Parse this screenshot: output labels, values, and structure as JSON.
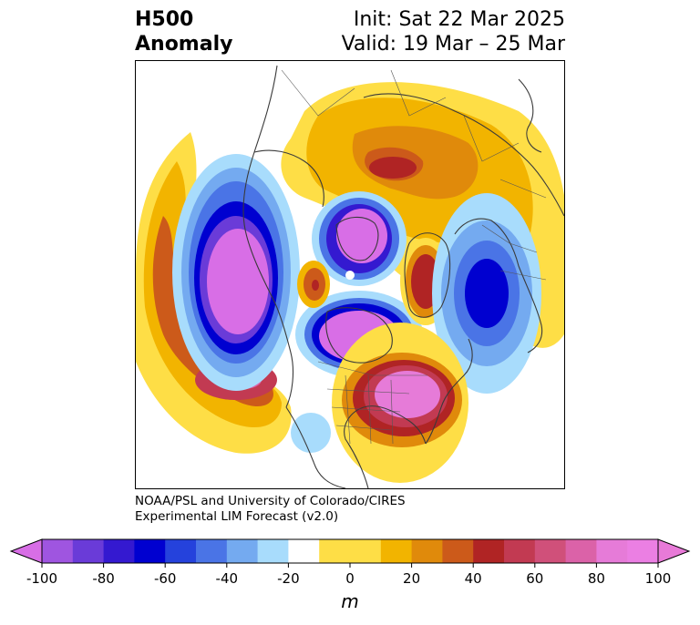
{
  "title": {
    "left_line1": "H500",
    "left_line2": "Anomaly",
    "right_line1": "Init: Sat 22 Mar 2025",
    "right_line2": "Valid: 19 Mar – 25 Mar"
  },
  "credit": {
    "line1": "NOAA/PSL and University of Colorado/CIRES",
    "line2": "Experimental LIM Forecast (v2.0)"
  },
  "colorbar": {
    "unit": "m",
    "ticks": [
      "-100",
      "-80",
      "-60",
      "-40",
      "-20",
      "0",
      "20",
      "40",
      "60",
      "80",
      "100"
    ],
    "levels": [
      -100,
      -90,
      -80,
      -70,
      -60,
      -50,
      -40,
      -30,
      -20,
      -10,
      10,
      20,
      30,
      40,
      50,
      60,
      70,
      80,
      90,
      100
    ],
    "colors": [
      "#9f55e0",
      "#6a3bd8",
      "#3419d0",
      "#0000d0",
      "#2542dc",
      "#4a74e6",
      "#74aaf0",
      "#a8dcfc",
      "#ffffff",
      "#fede46",
      "#f2b400",
      "#e08a0b",
      "#cc5a1a",
      "#b02424",
      "#c23a52",
      "#d0507a",
      "#db62a8",
      "#e67bd8",
      "#eb7fe3"
    ],
    "extend_low_color": "#d86ee6",
    "extend_high_color": "#e87ad8"
  },
  "map_data": {
    "projection": "north-polar-stereographic",
    "field": "500 hPa geopotential height anomaly",
    "anomalies": [
      {
        "location": "northeast Pacific / west of North America",
        "value": -100
      },
      {
        "location": "Hudson Bay / central Canada",
        "value": -100
      },
      {
        "location": "Arctic Ocean near pole",
        "value": -100
      },
      {
        "location": "North Atlantic / west of Europe",
        "value": -60
      },
      {
        "location": "eastern United States",
        "value": 100
      },
      {
        "location": "central North Pacific",
        "value": 80
      },
      {
        "location": "Siberia / northern Eurasia",
        "value": 60
      },
      {
        "location": "Greenland",
        "value": 60
      },
      {
        "location": "Arctic near Alaska",
        "value": 50
      }
    ]
  }
}
